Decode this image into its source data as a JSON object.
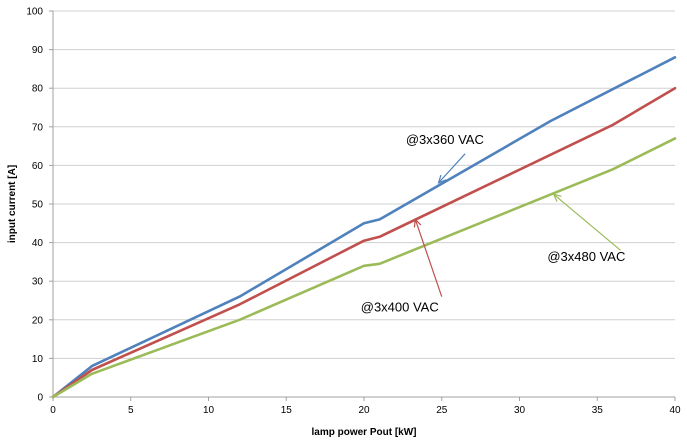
{
  "chart_data": {
    "type": "line",
    "xlabel": "lamp power Pout [kW]",
    "ylabel": "input current [A]",
    "xlim": [
      0,
      40
    ],
    "ylim": [
      0,
      100
    ],
    "x_ticks": [
      0,
      5,
      10,
      15,
      20,
      25,
      30,
      35,
      40
    ],
    "y_ticks": [
      0,
      10,
      20,
      30,
      40,
      50,
      60,
      70,
      80,
      90,
      100
    ],
    "grid": "horizontal",
    "legend": "none",
    "series": [
      {
        "name": "@3x360 VAC",
        "color": "#4f81bd",
        "points": [
          [
            0,
            0
          ],
          [
            2.5,
            8
          ],
          [
            12,
            26
          ],
          [
            20,
            45
          ],
          [
            21,
            46
          ],
          [
            32,
            71.5
          ],
          [
            40,
            88
          ]
        ]
      },
      {
        "name": "@3x400 VAC",
        "color": "#c0504d",
        "points": [
          [
            0,
            0
          ],
          [
            2.5,
            7
          ],
          [
            12,
            24
          ],
          [
            20,
            40.5
          ],
          [
            21,
            41.5
          ],
          [
            36,
            70.5
          ],
          [
            40,
            80
          ]
        ]
      },
      {
        "name": "@3x480 VAC",
        "color": "#9bbb59",
        "points": [
          [
            0,
            0
          ],
          [
            2.5,
            6
          ],
          [
            12,
            20
          ],
          [
            20,
            34
          ],
          [
            21,
            34.5
          ],
          [
            36,
            59
          ],
          [
            40,
            67
          ]
        ]
      }
    ],
    "annotations": [
      {
        "text": "@3x360 VAC",
        "series": 0,
        "text_at": [
          25.2,
          65.5
        ],
        "arrow_from": [
          26.5,
          63
        ],
        "arrow_to": [
          24.8,
          55.5
        ]
      },
      {
        "text": "@3x400 VAC",
        "series": 1,
        "text_at": [
          22.3,
          22.2
        ],
        "arrow_from": [
          25,
          26
        ],
        "arrow_to": [
          23.3,
          46
        ]
      },
      {
        "text": "@3x480 VAC",
        "series": 2,
        "text_at": [
          34.3,
          35.2
        ],
        "arrow_from": [
          36.5,
          38
        ],
        "arrow_to": [
          32.2,
          52.5
        ]
      }
    ]
  }
}
